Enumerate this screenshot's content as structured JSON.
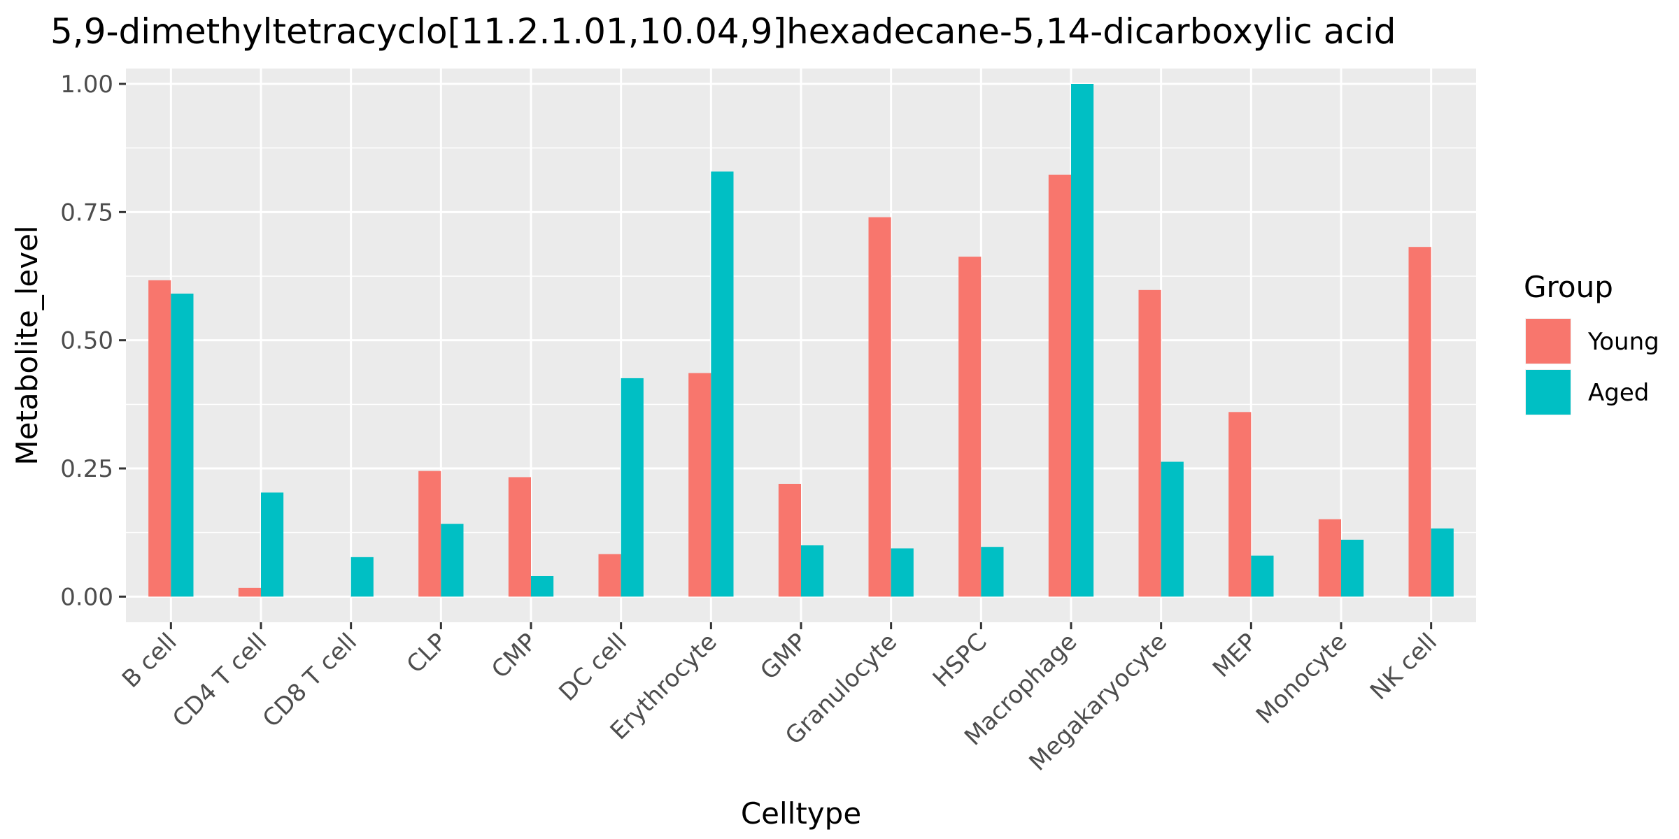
{
  "chart_data": {
    "type": "bar",
    "title": "5,9-dimethyltetracyclo[11.2.1.01,10.04,9]hexadecane-5,14-dicarboxylic acid",
    "xlabel": "Celltype",
    "ylabel": "Metabolite_level",
    "ylim": [
      -0.05,
      1.03
    ],
    "yticks": [
      0.0,
      0.25,
      0.5,
      0.75,
      1.0
    ],
    "ytick_labels": [
      "0.00",
      "0.25",
      "0.50",
      "0.75",
      "1.00"
    ],
    "categories": [
      "B cell",
      "CD4 T cell",
      "CD8 T cell",
      "CLP",
      "CMP",
      "DC cell",
      "Erythrocyte",
      "GMP",
      "Granulocyte",
      "HSPC",
      "Macrophage",
      "Megakaryocyte",
      "MEP",
      "Monocyte",
      "NK cell"
    ],
    "series": [
      {
        "name": "Young",
        "color": "#f8766d",
        "values": [
          0.617,
          0.017,
          0.0,
          0.245,
          0.233,
          0.083,
          0.436,
          0.22,
          0.74,
          0.663,
          0.823,
          0.598,
          0.36,
          0.151,
          0.682
        ]
      },
      {
        "name": "Aged",
        "color": "#00bfc4",
        "values": [
          0.591,
          0.203,
          0.077,
          0.142,
          0.04,
          0.426,
          0.829,
          0.1,
          0.094,
          0.097,
          1.0,
          0.263,
          0.08,
          0.111,
          0.133
        ]
      }
    ],
    "legend": {
      "title": "Group",
      "position": "right"
    },
    "grid": true,
    "panel_background": "#ebebeb"
  }
}
